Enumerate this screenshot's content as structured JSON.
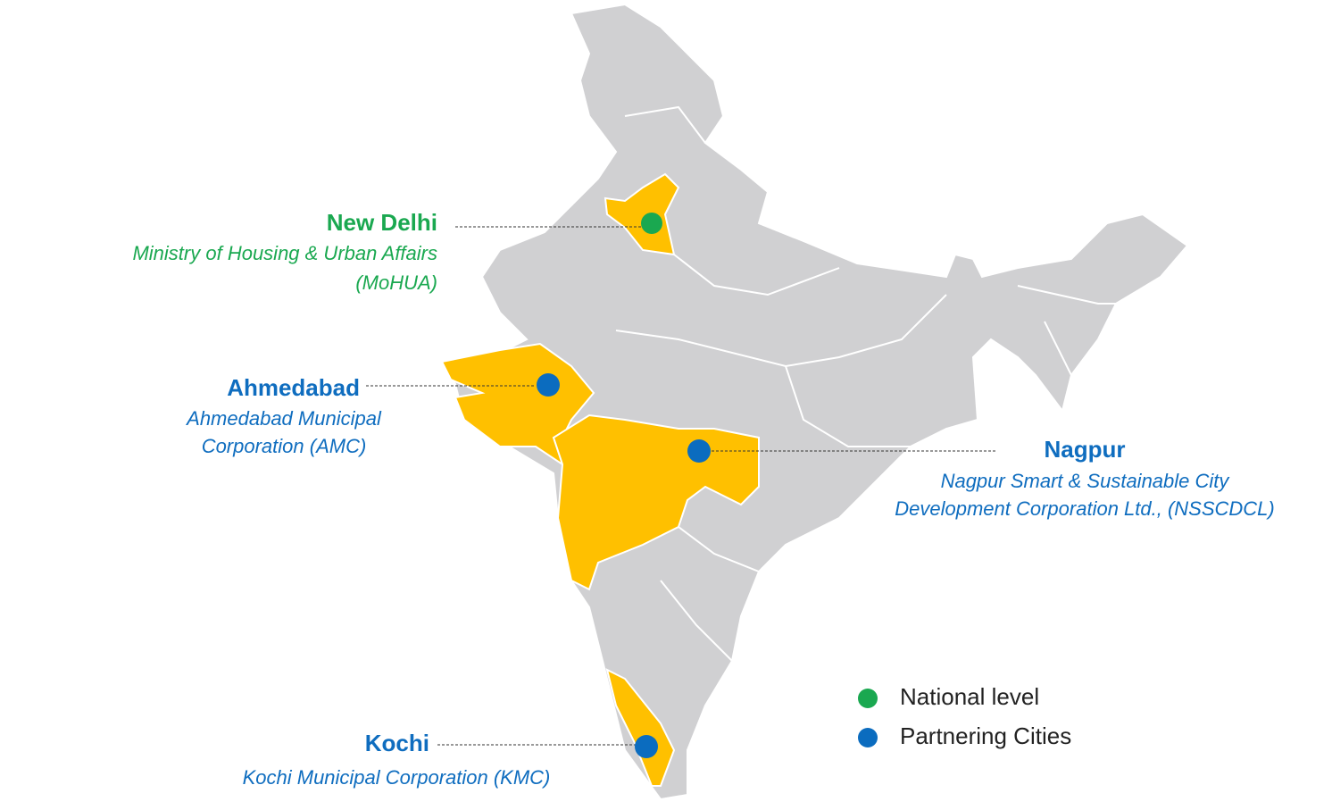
{
  "locations": [
    {
      "name": "New Delhi",
      "organization": [
        "Ministry of Housing & Urban Affairs",
        "(MoHUA)"
      ]
    },
    {
      "name": "Ahmedabad",
      "organization": [
        "Ahmedabad Municipal",
        "Corporation (AMC)"
      ]
    },
    {
      "name": "Nagpur",
      "organization": [
        "Nagpur Smart & Sustainable City",
        "Development Corporation Ltd., (NSSCDCL)"
      ]
    },
    {
      "name": "Kochi",
      "organization": [
        "Kochi Municipal Corporation (KMC)"
      ]
    }
  ],
  "legend": [
    "National level",
    "Partnering Cities"
  ]
}
